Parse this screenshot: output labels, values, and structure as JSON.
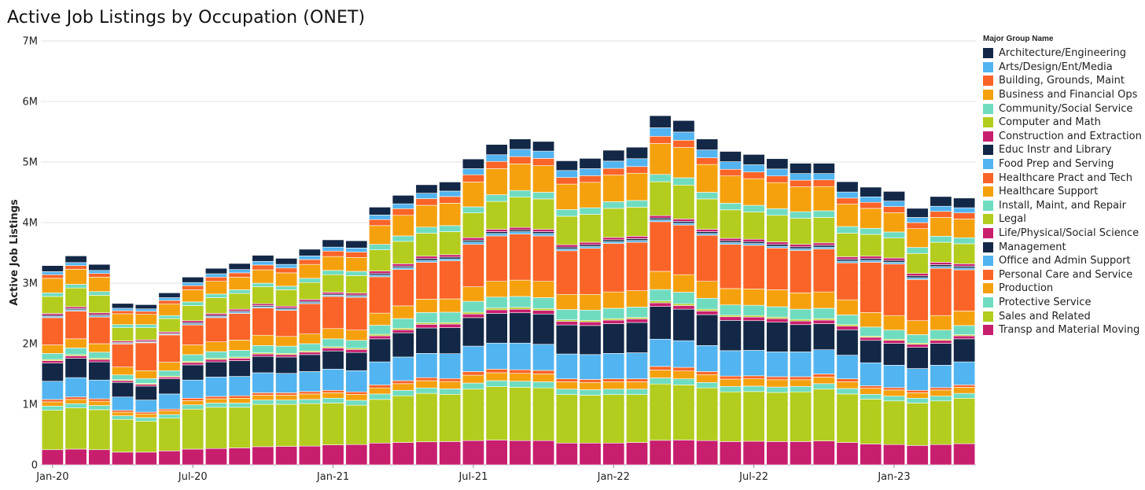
{
  "chart_data": {
    "type": "bar",
    "stacked": true,
    "title": "Active Job Listings by Occupation (ONET)",
    "xlabel": "",
    "ylabel": "Active Job Listings",
    "ylim": [
      0,
      7000000
    ],
    "yticks": [
      0,
      1000000,
      2000000,
      3000000,
      4000000,
      5000000,
      6000000,
      7000000
    ],
    "ytick_labels": [
      "0",
      "1M",
      "2M",
      "3M",
      "4M",
      "5M",
      "6M",
      "7M"
    ],
    "categories": [
      "Jan-20",
      "Feb-20",
      "Mar-20",
      "Apr-20",
      "May-20",
      "Jun-20",
      "Jul-20",
      "Aug-20",
      "Sep-20",
      "Oct-20",
      "Nov-20",
      "Dec-20",
      "Jan-21",
      "Feb-21",
      "Mar-21",
      "Apr-21",
      "May-21",
      "Jun-21",
      "Jul-21",
      "Aug-21",
      "Sep-21",
      "Oct-21",
      "Nov-21",
      "Dec-21",
      "Jan-22",
      "Feb-22",
      "Mar-22",
      "Apr-22",
      "May-22",
      "Jun-22",
      "Jul-22",
      "Aug-22",
      "Sep-22",
      "Oct-22",
      "Nov-22",
      "Dec-22",
      "Jan-23",
      "Feb-23",
      "Mar-23",
      "Apr-23"
    ],
    "xtick_labels": [
      {
        "index": 0,
        "label": "Jan-20"
      },
      {
        "index": 6,
        "label": "Jul-20"
      },
      {
        "index": 12,
        "label": "Jan-21"
      },
      {
        "index": 18,
        "label": "Jul-21"
      },
      {
        "index": 24,
        "label": "Jan-22"
      },
      {
        "index": 30,
        "label": "Jul-22"
      },
      {
        "index": 36,
        "label": "Jan-23"
      }
    ],
    "legend_title": "Major Group Name",
    "legend_position": "right",
    "grid": true,
    "series": [
      {
        "name": "Transp and Material Moving",
        "color": "#c81e6e",
        "values": [
          250000,
          260000,
          250000,
          210000,
          210000,
          230000,
          260000,
          270000,
          280000,
          300000,
          305000,
          310000,
          330000,
          335000,
          360000,
          370000,
          380000,
          385000,
          400000,
          410000,
          400000,
          400000,
          360000,
          360000,
          360000,
          370000,
          405000,
          410000,
          400000,
          385000,
          390000,
          385000,
          385000,
          395000,
          370000,
          345000,
          335000,
          320000,
          335000,
          350000
        ]
      },
      {
        "name": "Sales and Related",
        "color": "#b3cc1e",
        "values": [
          650000,
          680000,
          660000,
          540000,
          510000,
          540000,
          660000,
          680000,
          670000,
          700000,
          695000,
          700000,
          690000,
          650000,
          720000,
          770000,
          800000,
          780000,
          850000,
          880000,
          880000,
          870000,
          800000,
          790000,
          800000,
          790000,
          930000,
          910000,
          870000,
          820000,
          820000,
          810000,
          820000,
          855000,
          800000,
          740000,
          720000,
          700000,
          720000,
          750000
        ]
      },
      {
        "name": "Protective Service",
        "color": "#6fdcc0",
        "values": [
          70000,
          70000,
          70000,
          60000,
          60000,
          60000,
          70000,
          70000,
          70000,
          70000,
          70000,
          70000,
          80000,
          80000,
          90000,
          90000,
          90000,
          90000,
          100000,
          100000,
          100000,
          100000,
          90000,
          90000,
          90000,
          90000,
          100000,
          100000,
          90000,
          90000,
          90000,
          90000,
          90000,
          90000,
          90000,
          80000,
          80000,
          80000,
          80000,
          80000
        ]
      },
      {
        "name": "Production",
        "color": "#f5a10e",
        "values": [
          70000,
          70000,
          70000,
          60000,
          60000,
          60000,
          70000,
          70000,
          80000,
          80000,
          80000,
          90000,
          90000,
          100000,
          100000,
          110000,
          120000,
          120000,
          130000,
          130000,
          130000,
          130000,
          120000,
          120000,
          120000,
          120000,
          130000,
          130000,
          130000,
          120000,
          120000,
          120000,
          110000,
          110000,
          110000,
          100000,
          100000,
          90000,
          100000,
          100000
        ]
      },
      {
        "name": "Personal Care and Service",
        "color": "#fa6428",
        "values": [
          40000,
          40000,
          40000,
          30000,
          30000,
          30000,
          40000,
          40000,
          40000,
          40000,
          40000,
          40000,
          40000,
          40000,
          50000,
          50000,
          50000,
          50000,
          60000,
          60000,
          60000,
          60000,
          50000,
          50000,
          50000,
          50000,
          60000,
          60000,
          50000,
          50000,
          50000,
          50000,
          50000,
          50000,
          50000,
          40000,
          40000,
          40000,
          40000,
          40000
        ]
      },
      {
        "name": "Office and Admin Support",
        "color": "#52b4f0",
        "values": [
          300000,
          320000,
          310000,
          220000,
          200000,
          250000,
          300000,
          320000,
          320000,
          330000,
          320000,
          330000,
          350000,
          350000,
          380000,
          390000,
          400000,
          410000,
          420000,
          430000,
          440000,
          430000,
          410000,
          410000,
          420000,
          430000,
          450000,
          440000,
          430000,
          420000,
          420000,
          410000,
          410000,
          400000,
          390000,
          380000,
          370000,
          360000,
          370000,
          380000
        ]
      },
      {
        "name": "Management",
        "color": "#132846",
        "values": [
          300000,
          320000,
          300000,
          240000,
          230000,
          250000,
          250000,
          250000,
          260000,
          270000,
          270000,
          280000,
          300000,
          300000,
          380000,
          400000,
          420000,
          430000,
          470000,
          490000,
          500000,
          500000,
          480000,
          480000,
          490000,
          500000,
          540000,
          520000,
          510000,
          500000,
          490000,
          490000,
          450000,
          430000,
          420000,
          370000,
          360000,
          350000,
          360000,
          380000
        ]
      },
      {
        "name": "Life/Physical/Social Science",
        "color": "#c81e6e",
        "values": [
          40000,
          40000,
          40000,
          30000,
          30000,
          30000,
          40000,
          40000,
          40000,
          40000,
          40000,
          40000,
          50000,
          50000,
          50000,
          50000,
          60000,
          60000,
          60000,
          60000,
          60000,
          60000,
          60000,
          60000,
          60000,
          60000,
          60000,
          60000,
          60000,
          60000,
          60000,
          60000,
          60000,
          60000,
          60000,
          50000,
          50000,
          50000,
          50000,
          50000
        ]
      },
      {
        "name": "Legal",
        "color": "#b3cc1e",
        "values": [
          20000,
          20000,
          20000,
          15000,
          15000,
          15000,
          20000,
          20000,
          20000,
          20000,
          20000,
          20000,
          20000,
          20000,
          25000,
          25000,
          25000,
          25000,
          30000,
          30000,
          30000,
          30000,
          25000,
          25000,
          25000,
          25000,
          30000,
          30000,
          30000,
          25000,
          25000,
          25000,
          25000,
          25000,
          25000,
          20000,
          20000,
          20000,
          20000,
          20000
        ]
      },
      {
        "name": "Install, Maint, and Repair",
        "color": "#6fdcc0",
        "values": [
          100000,
          110000,
          100000,
          80000,
          80000,
          90000,
          110000,
          110000,
          110000,
          120000,
          120000,
          120000,
          130000,
          130000,
          150000,
          160000,
          170000,
          170000,
          180000,
          180000,
          180000,
          180000,
          170000,
          170000,
          170000,
          170000,
          190000,
          190000,
          180000,
          170000,
          170000,
          170000,
          170000,
          170000,
          160000,
          150000,
          150000,
          140000,
          150000,
          150000
        ]
      },
      {
        "name": "Healthcare Support",
        "color": "#f5a10e",
        "values": [
          140000,
          150000,
          140000,
          130000,
          130000,
          140000,
          160000,
          160000,
          170000,
          170000,
          160000,
          160000,
          170000,
          170000,
          200000,
          210000,
          220000,
          220000,
          240000,
          260000,
          270000,
          270000,
          250000,
          260000,
          270000,
          270000,
          300000,
          290000,
          280000,
          270000,
          270000,
          280000,
          270000,
          270000,
          250000,
          240000,
          240000,
          230000,
          240000,
          240000
        ]
      },
      {
        "name": "Healthcare Pract and Tech",
        "color": "#fa6428",
        "values": [
          450000,
          460000,
          440000,
          380000,
          460000,
          450000,
          330000,
          400000,
          440000,
          450000,
          430000,
          500000,
          530000,
          540000,
          600000,
          600000,
          610000,
          630000,
          700000,
          750000,
          760000,
          750000,
          720000,
          760000,
          800000,
          800000,
          820000,
          820000,
          760000,
          730000,
          720000,
          690000,
          700000,
          710000,
          610000,
          830000,
          850000,
          680000,
          780000,
          680000
        ]
      },
      {
        "name": "Food Prep and Serving",
        "color": "#52b4f0",
        "values": [
          20000,
          20000,
          20000,
          10000,
          10000,
          10000,
          20000,
          20000,
          20000,
          20000,
          20000,
          20000,
          20000,
          20000,
          30000,
          30000,
          30000,
          30000,
          40000,
          40000,
          40000,
          40000,
          30000,
          30000,
          30000,
          30000,
          30000,
          30000,
          30000,
          30000,
          30000,
          30000,
          30000,
          30000,
          30000,
          30000,
          30000,
          30000,
          30000,
          30000
        ]
      },
      {
        "name": "Educ Instr and Library",
        "color": "#132846",
        "values": [
          20000,
          20000,
          20000,
          15000,
          15000,
          15000,
          20000,
          20000,
          20000,
          20000,
          20000,
          20000,
          20000,
          20000,
          25000,
          25000,
          30000,
          30000,
          30000,
          30000,
          30000,
          30000,
          30000,
          30000,
          30000,
          30000,
          30000,
          30000,
          30000,
          30000,
          30000,
          30000,
          30000,
          30000,
          30000,
          30000,
          30000,
          30000,
          30000,
          30000
        ]
      },
      {
        "name": "Construction and Extraction",
        "color": "#c81e6e",
        "values": [
          30000,
          30000,
          30000,
          25000,
          25000,
          25000,
          30000,
          30000,
          30000,
          30000,
          30000,
          30000,
          30000,
          30000,
          40000,
          40000,
          40000,
          40000,
          40000,
          40000,
          40000,
          40000,
          40000,
          40000,
          40000,
          40000,
          40000,
          40000,
          40000,
          40000,
          40000,
          40000,
          40000,
          40000,
          40000,
          40000,
          40000,
          40000,
          40000,
          40000
        ]
      },
      {
        "name": "Computer and Math",
        "color": "#b3cc1e",
        "values": [
          280000,
          310000,
          290000,
          220000,
          200000,
          220000,
          250000,
          260000,
          260000,
          280000,
          270000,
          280000,
          290000,
          290000,
          350000,
          370000,
          380000,
          380000,
          410000,
          460000,
          500000,
          500000,
          470000,
          460000,
          480000,
          480000,
          560000,
          560000,
          500000,
          470000,
          450000,
          440000,
          430000,
          420000,
          390000,
          360000,
          330000,
          330000,
          330000,
          330000
        ]
      },
      {
        "name": "Community/Social Service",
        "color": "#6fdcc0",
        "values": [
          60000,
          60000,
          60000,
          50000,
          50000,
          50000,
          60000,
          60000,
          60000,
          60000,
          60000,
          70000,
          70000,
          70000,
          90000,
          90000,
          100000,
          100000,
          100000,
          110000,
          110000,
          110000,
          110000,
          110000,
          110000,
          110000,
          120000,
          120000,
          110000,
          110000,
          110000,
          110000,
          110000,
          110000,
          110000,
          100000,
          100000,
          100000,
          100000,
          100000
        ]
      },
      {
        "name": "Business and Financial Ops",
        "color": "#f5a10e",
        "values": [
          240000,
          250000,
          240000,
          180000,
          170000,
          190000,
          200000,
          210000,
          210000,
          220000,
          220000,
          230000,
          230000,
          230000,
          310000,
          340000,
          360000,
          370000,
          410000,
          430000,
          440000,
          440000,
          420000,
          420000,
          440000,
          450000,
          510000,
          500000,
          460000,
          450000,
          440000,
          430000,
          410000,
          400000,
          370000,
          330000,
          320000,
          310000,
          310000,
          310000
        ]
      },
      {
        "name": "Building, Grounds, Maint",
        "color": "#fa6428",
        "values": [
          60000,
          60000,
          60000,
          50000,
          50000,
          60000,
          70000,
          70000,
          70000,
          80000,
          80000,
          80000,
          90000,
          90000,
          100000,
          110000,
          110000,
          110000,
          120000,
          120000,
          120000,
          120000,
          110000,
          110000,
          110000,
          110000,
          120000,
          120000,
          110000,
          110000,
          110000,
          110000,
          110000,
          110000,
          100000,
          100000,
          100000,
          100000,
          100000,
          100000
        ]
      },
      {
        "name": "Arts/Design/Ent/Media",
        "color": "#52b4f0",
        "values": [
          50000,
          50000,
          50000,
          40000,
          40000,
          45000,
          50000,
          55000,
          55000,
          60000,
          60000,
          60000,
          65000,
          65000,
          75000,
          80000,
          90000,
          90000,
          100000,
          110000,
          120000,
          120000,
          115000,
          115000,
          120000,
          130000,
          140000,
          135000,
          130000,
          125000,
          120000,
          115000,
          110000,
          105000,
          100000,
          90000,
          90000,
          85000,
          85000,
          85000
        ]
      },
      {
        "name": "Architecture/Engineering",
        "color": "#132846",
        "values": [
          100000,
          110000,
          100000,
          80000,
          70000,
          80000,
          90000,
          90000,
          100000,
          100000,
          100000,
          110000,
          120000,
          120000,
          130000,
          140000,
          140000,
          150000,
          160000,
          170000,
          170000,
          160000,
          160000,
          170000,
          180000,
          190000,
          200000,
          190000,
          180000,
          170000,
          170000,
          170000,
          170000,
          170000,
          170000,
          160000,
          160000,
          150000,
          160000,
          160000
        ]
      }
    ]
  }
}
